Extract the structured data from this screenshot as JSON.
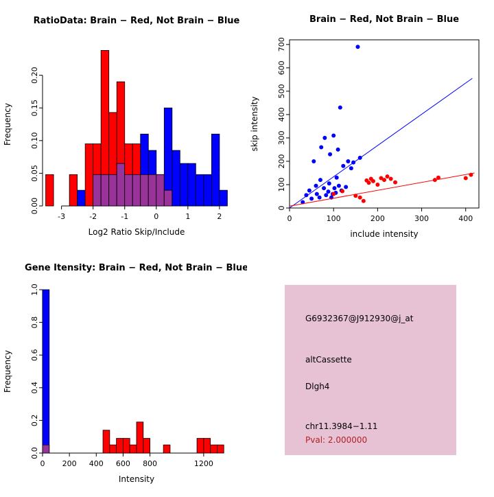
{
  "colors": {
    "red": "#ff0000",
    "blue": "#0000ff",
    "overlap": "#993399",
    "axis": "#000000"
  },
  "chart_data": [
    {
      "type": "bar",
      "subtype": "overlaid-histogram",
      "title": "RatioData: Brain − Red, Not Brain − Blue",
      "xlabel": "Log2 Ratio Skip/Include",
      "ylabel": "Frequency",
      "xlim": [
        -3.6,
        2.35
      ],
      "ylim": [
        0,
        0.25
      ],
      "xticks": [
        -3,
        -2,
        -1,
        0,
        1,
        2
      ],
      "ytick_vals": [
        0,
        0.05,
        0.1,
        0.15,
        0.2
      ],
      "ytick_labels": [
        "0.00",
        "0.05",
        "0.10",
        "0.15",
        "0.20"
      ],
      "bin_width": 0.25,
      "bin_x": [
        -3.5,
        -3.25,
        -3.0,
        -2.75,
        -2.5,
        -2.25,
        -2.0,
        -1.75,
        -1.5,
        -1.25,
        -1.0,
        -0.75,
        -0.5,
        -0.25,
        0.0,
        0.25,
        0.5,
        0.75,
        1.0,
        1.25,
        1.5,
        1.75,
        2.0
      ],
      "series": [
        {
          "name": "Brain (red)",
          "key": "red",
          "values": [
            0.048,
            0,
            0,
            0.048,
            0,
            0.095,
            0.095,
            0.238,
            0.143,
            0.19,
            0.095,
            0.095,
            0.048,
            0.048,
            0.048,
            0.024,
            0,
            0,
            0,
            0,
            0,
            0,
            0
          ]
        },
        {
          "name": "Not Brain (blue)",
          "key": "blue",
          "values": [
            0,
            0,
            0,
            0,
            0.024,
            0,
            0.048,
            0.048,
            0.048,
            0.065,
            0.048,
            0.048,
            0.11,
            0.085,
            0.048,
            0.15,
            0.085,
            0.065,
            0.065,
            0.048,
            0.048,
            0.11,
            0.024
          ]
        }
      ]
    },
    {
      "type": "scatter",
      "title": "Brain − Red, Not Brain − Blue",
      "xlabel": "include intensity",
      "ylabel": "skip intensity",
      "xlim": [
        0,
        430
      ],
      "ylim": [
        0,
        720
      ],
      "xticks": [
        0,
        100,
        200,
        300,
        400
      ],
      "ytick_vals": [
        0,
        100,
        200,
        300,
        400,
        500,
        600,
        700
      ],
      "ytick_labels": [
        "0",
        "100",
        "200",
        "300",
        "400",
        "500",
        "600",
        "700"
      ],
      "box": true,
      "series": [
        {
          "name": "Not Brain (blue)",
          "key": "blue",
          "points": [
            [
              30,
              25
            ],
            [
              38,
              55
            ],
            [
              45,
              75
            ],
            [
              50,
              40
            ],
            [
              55,
              200
            ],
            [
              60,
              95
            ],
            [
              62,
              60
            ],
            [
              68,
              45
            ],
            [
              70,
              120
            ],
            [
              72,
              260
            ],
            [
              78,
              85
            ],
            [
              80,
              300
            ],
            [
              83,
              55
            ],
            [
              88,
              70
            ],
            [
              90,
              105
            ],
            [
              92,
              230
            ],
            [
              95,
              45
            ],
            [
              98,
              60
            ],
            [
              100,
              310
            ],
            [
              102,
              85
            ],
            [
              105,
              65
            ],
            [
              107,
              130
            ],
            [
              110,
              250
            ],
            [
              112,
              95
            ],
            [
              115,
              430
            ],
            [
              118,
              75
            ],
            [
              122,
              180
            ],
            [
              128,
              90
            ],
            [
              133,
              200
            ],
            [
              140,
              170
            ],
            [
              145,
              195
            ],
            [
              155,
              690
            ],
            [
              160,
              215
            ]
          ],
          "fit_line": [
            [
              0,
              0
            ],
            [
              415,
              555
            ]
          ]
        },
        {
          "name": "Brain (red)",
          "key": "red",
          "points": [
            [
              100,
              60
            ],
            [
              120,
              72
            ],
            [
              150,
              52
            ],
            [
              160,
              45
            ],
            [
              168,
              30
            ],
            [
              175,
              118
            ],
            [
              180,
              108
            ],
            [
              185,
              125
            ],
            [
              190,
              115
            ],
            [
              200,
              100
            ],
            [
              208,
              128
            ],
            [
              215,
              120
            ],
            [
              222,
              135
            ],
            [
              230,
              125
            ],
            [
              240,
              110
            ],
            [
              330,
              120
            ],
            [
              338,
              130
            ],
            [
              400,
              128
            ],
            [
              412,
              142
            ]
          ],
          "fit_line": [
            [
              0,
              8
            ],
            [
              420,
              150
            ]
          ]
        }
      ]
    },
    {
      "type": "bar",
      "subtype": "overlaid-histogram",
      "title": "Gene Itensity: Brain − Red, Not Brain − Blue",
      "xlabel": "Intensity",
      "ylabel": "Frequency",
      "xlim": [
        0,
        1400
      ],
      "ylim": [
        0,
        1.0
      ],
      "xticks": [
        0,
        200,
        400,
        600,
        800,
        1200
      ],
      "ytick_vals": [
        0,
        0.2,
        0.4,
        0.6,
        0.8,
        1.0
      ],
      "ytick_labels": [
        "0.0",
        "0.2",
        "0.4",
        "0.6",
        "0.8",
        "1.0"
      ],
      "bin_width": 50,
      "bin_x": [
        0,
        450,
        500,
        550,
        600,
        650,
        700,
        750,
        900,
        1150,
        1200,
        1250,
        1300
      ],
      "series": [
        {
          "name": "Brain (red)",
          "key": "red",
          "values": [
            0.05,
            0.14,
            0.05,
            0.09,
            0.09,
            0.05,
            0.19,
            0.09,
            0.05,
            0.09,
            0.09,
            0.05,
            0.05
          ]
        },
        {
          "name": "Not Brain (blue)",
          "key": "blue",
          "values": [
            1.0,
            0,
            0,
            0,
            0,
            0,
            0,
            0,
            0,
            0,
            0,
            0,
            0
          ]
        }
      ]
    }
  ],
  "info_box": {
    "bg_color": "#e7c1d4",
    "probe_id": "G6932367@J912930@j_at",
    "event_type": "altCassette",
    "gene": "Dlgh4",
    "locus": "chr11.3984−1.11",
    "pval": "Pval: 2.000000",
    "pval_color": "#b22222"
  }
}
